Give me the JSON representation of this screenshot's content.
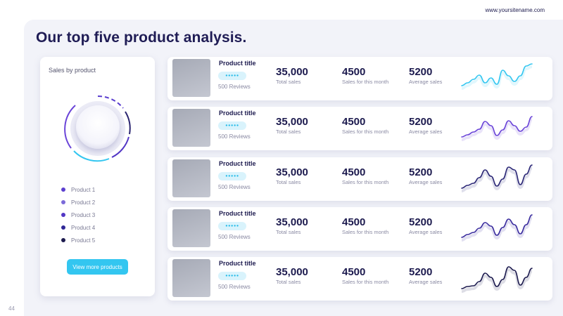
{
  "header": {
    "site_url": "www.yoursitename.com",
    "title": "Our top five product analysis."
  },
  "footer": {
    "page_number": "44"
  },
  "left_panel": {
    "title": "Sales by product",
    "legend": [
      {
        "label": "Product 1",
        "color": "#5b3fcf"
      },
      {
        "label": "Product 2",
        "color": "#7b6ad9"
      },
      {
        "label": "Product 3",
        "color": "#5236c5"
      },
      {
        "label": "Product 4",
        "color": "#2f2796"
      },
      {
        "label": "Product 5",
        "color": "#1c1a4e"
      }
    ],
    "button_label": "View more products"
  },
  "colors": {
    "accent": "#33c6f0",
    "primary": "#1f1c55",
    "card_bg": "#ffffff",
    "page_bg": "#f2f3f9"
  },
  "products": [
    {
      "title": "Product title",
      "reviews": "500 Reviews",
      "stars": 5,
      "total_sales": "35,000",
      "total_sales_label": "Total sales",
      "month_sales": "4500",
      "month_sales_label": "Sales for this month",
      "avg_sales": "5200",
      "avg_sales_label": "Average sales",
      "sparkline": [
        12,
        20,
        30,
        42,
        20,
        34,
        16,
        56,
        40,
        24,
        40,
        68,
        74
      ],
      "spark_color": "#33c6f0"
    },
    {
      "title": "Product title",
      "reviews": "500 Reviews",
      "stars": 5,
      "total_sales": "35,000",
      "total_sales_label": "Total sales",
      "month_sales": "4500",
      "month_sales_label": "Sales for this month",
      "avg_sales": "5200",
      "avg_sales_label": "Average sales",
      "sparkline": [
        8,
        14,
        22,
        30,
        52,
        40,
        12,
        28,
        54,
        40,
        24,
        36,
        66
      ],
      "spark_color": "#6a44d8"
    },
    {
      "title": "Product title",
      "reviews": "500 Reviews",
      "stars": 5,
      "total_sales": "35,000",
      "total_sales_label": "Total sales",
      "month_sales": "4500",
      "month_sales_label": "Sales for this month",
      "avg_sales": "5200",
      "avg_sales_label": "Average sales",
      "sparkline": [
        6,
        14,
        20,
        36,
        58,
        40,
        12,
        32,
        66,
        58,
        16,
        46,
        72
      ],
      "spark_color": "#2b2776"
    },
    {
      "title": "Product title",
      "reviews": "500 Reviews",
      "stars": 5,
      "total_sales": "35,000",
      "total_sales_label": "Total sales",
      "month_sales": "4500",
      "month_sales_label": "Sales for this month",
      "avg_sales": "5200",
      "avg_sales_label": "Average sales",
      "sparkline": [
        8,
        16,
        22,
        34,
        50,
        40,
        14,
        36,
        60,
        44,
        18,
        44,
        72
      ],
      "spark_color": "#3a2c9e"
    },
    {
      "title": "Product title",
      "reviews": "500 Reviews",
      "stars": 5,
      "total_sales": "35,000",
      "total_sales_label": "Total sales",
      "month_sales": "4500",
      "month_sales_label": "Sales for this month",
      "avg_sales": "5200",
      "avg_sales_label": "Average sales",
      "sparkline": [
        4,
        10,
        12,
        24,
        48,
        36,
        10,
        30,
        66,
        56,
        14,
        36,
        62
      ],
      "spark_color": "#1c1a4e"
    }
  ]
}
